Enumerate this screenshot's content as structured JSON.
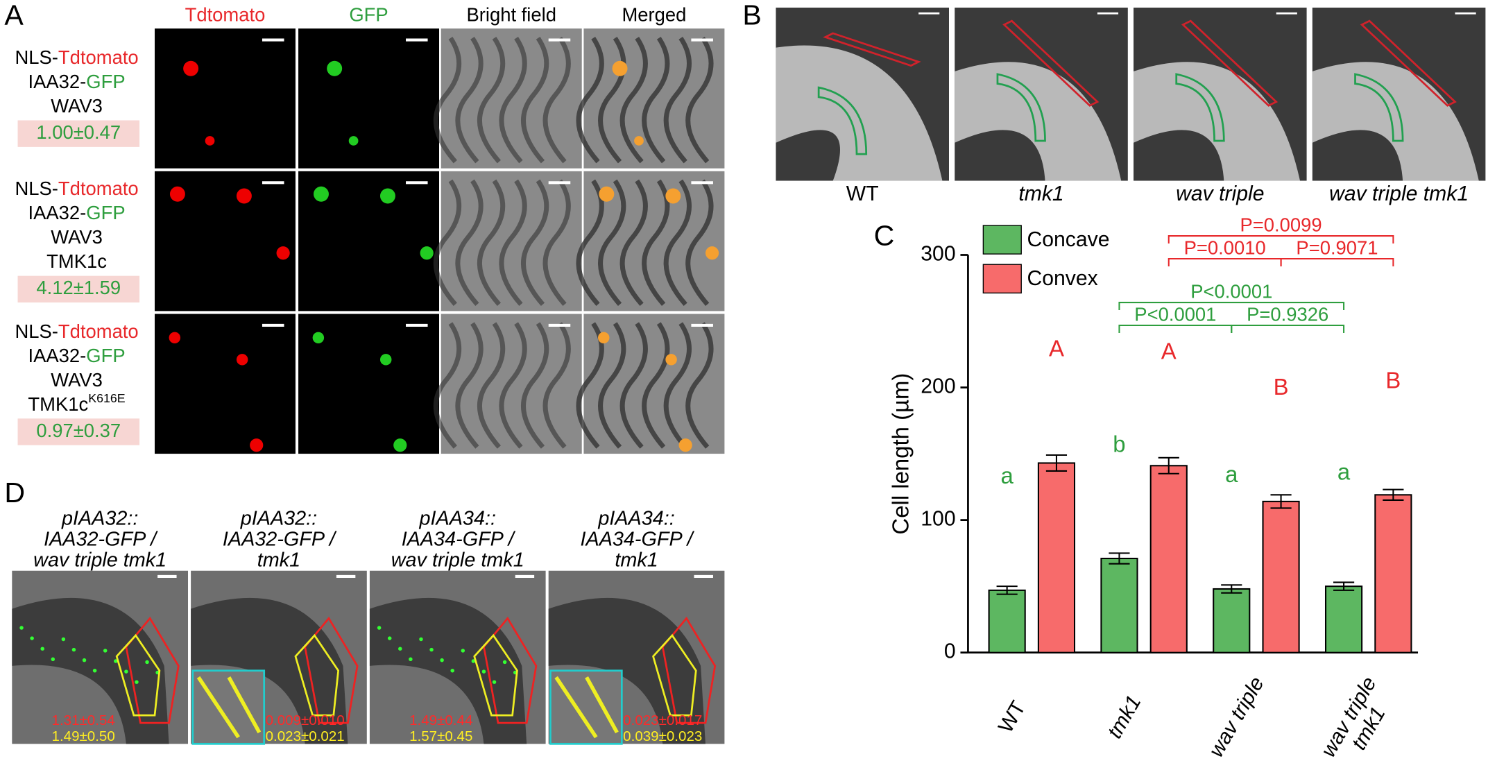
{
  "panel_a": {
    "label": "A",
    "columns": [
      "Tdtomato",
      "GFP",
      "Bright field",
      "Merged"
    ],
    "rows": [
      {
        "lines": [
          [
            "NLS-",
            "Tdtomato"
          ],
          [
            "IAA32-",
            "GFP"
          ],
          [
            "WAV3"
          ]
        ],
        "value": "1.00±0.47"
      },
      {
        "lines": [
          [
            "NLS-",
            "Tdtomato"
          ],
          [
            "IAA32-",
            "GFP"
          ],
          [
            "WAV3"
          ],
          [
            "TMK1c"
          ]
        ],
        "value": "4.12±1.59"
      },
      {
        "lines": [
          [
            "NLS-",
            "Tdtomato"
          ],
          [
            "IAA32-",
            "GFP"
          ],
          [
            "WAV3"
          ],
          [
            "TMK1c",
            "K616E"
          ]
        ],
        "value": "0.97±0.37"
      }
    ]
  },
  "panel_b": {
    "label": "B",
    "captions": [
      "WT",
      "tmk1",
      "wav triple",
      "wav triple tmk1"
    ]
  },
  "chart_data": {
    "type": "bar",
    "panel_label": "C",
    "y_label": "Cell length (µm)",
    "categories": [
      "WT",
      "tmk1",
      "wav triple",
      "wav triple tmk1"
    ],
    "series": [
      {
        "name": "Concave",
        "color": "#5db761",
        "values": [
          47,
          71,
          48,
          50
        ],
        "errors": [
          3,
          4,
          3,
          3
        ],
        "letters": [
          "a",
          "b",
          "a",
          "a"
        ]
      },
      {
        "name": "Convex",
        "color": "#f76b6b",
        "values": [
          143,
          141,
          114,
          119
        ],
        "errors": [
          6,
          6,
          5,
          4
        ],
        "letters": [
          "A",
          "A",
          "B",
          "B"
        ]
      }
    ],
    "ylim": [
      0,
      300
    ],
    "yticks": [
      0,
      100,
      200,
      300
    ],
    "legend": "top-left",
    "comparisons": [
      {
        "series": 0,
        "from": 1,
        "to": 3,
        "label": "P<0.0001"
      },
      {
        "series": 0,
        "from": 1,
        "to": 2,
        "label": "P<0.0001"
      },
      {
        "series": 0,
        "from": 2,
        "to": 3,
        "label": "P=0.9326"
      },
      {
        "series": 1,
        "from": 1,
        "to": 3,
        "label": "P=0.0099"
      },
      {
        "series": 1,
        "from": 1,
        "to": 2,
        "label": "P=0.0010"
      },
      {
        "series": 1,
        "from": 2,
        "to": 3,
        "label": "P=0.9071"
      }
    ]
  },
  "panel_d": {
    "label": "D",
    "columns": [
      {
        "title": [
          "pIAA32::",
          "IAA32-GFP /",
          "wav triple tmk1"
        ],
        "convex": "1.31±0.54",
        "concave": "1.49±0.50"
      },
      {
        "title": [
          "pIAA32::",
          "IAA32-GFP /",
          "tmk1"
        ],
        "convex": "0.009±0.010",
        "concave": "0.023±0.021"
      },
      {
        "title": [
          "pIAA34::",
          "IAA34-GFP /",
          "wav triple tmk1"
        ],
        "convex": "1.49±0.44",
        "concave": "1.57±0.45"
      },
      {
        "title": [
          "pIAA34::",
          "IAA34-GFP /",
          "tmk1"
        ],
        "convex": "0.023±0.017",
        "concave": "0.039±0.023"
      }
    ]
  }
}
